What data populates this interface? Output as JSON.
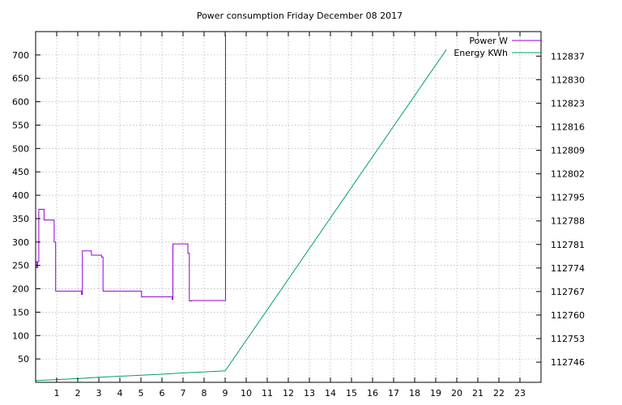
{
  "chart_data": {
    "type": "line",
    "title": "Power consumption Friday December 08 2017",
    "xlabel": "",
    "ylabel": "",
    "y2label": "",
    "xlim": [
      0,
      24
    ],
    "ylim": [
      0,
      750
    ],
    "y2lim": [
      112740,
      112844.3
    ],
    "grid": true,
    "legend_position": "top-right",
    "x_ticks": [
      1,
      2,
      3,
      4,
      5,
      6,
      7,
      8,
      9,
      10,
      11,
      12,
      13,
      14,
      15,
      16,
      17,
      18,
      19,
      20,
      21,
      22,
      23
    ],
    "y_ticks": [
      50,
      100,
      150,
      200,
      250,
      300,
      350,
      400,
      450,
      500,
      550,
      600,
      650,
      700
    ],
    "y2_ticks": [
      112746,
      112753,
      112760,
      112767,
      112774,
      112781,
      112788,
      112795,
      112802,
      112809,
      112816,
      112823,
      112830,
      112837
    ],
    "series": [
      {
        "name": "Power W",
        "axis": "left",
        "color": "#9400d3",
        "step": true,
        "points": [
          [
            0.0,
            258
          ],
          [
            0.05,
            245
          ],
          [
            0.1,
            258
          ],
          [
            0.15,
            370
          ],
          [
            0.35,
            370
          ],
          [
            0.4,
            347
          ],
          [
            0.85,
            347
          ],
          [
            0.88,
            300
          ],
          [
            0.95,
            195
          ],
          [
            2.15,
            195
          ],
          [
            2.18,
            188
          ],
          [
            2.22,
            281
          ],
          [
            2.6,
            281
          ],
          [
            2.65,
            272
          ],
          [
            3.1,
            272
          ],
          [
            3.13,
            268
          ],
          [
            3.2,
            195
          ],
          [
            5.0,
            195
          ],
          [
            5.03,
            183
          ],
          [
            6.45,
            183
          ],
          [
            6.48,
            177
          ],
          [
            6.52,
            296
          ],
          [
            7.2,
            296
          ],
          [
            7.23,
            276
          ],
          [
            7.3,
            174
          ],
          [
            7.35,
            174
          ],
          [
            7.4,
            175
          ],
          [
            9.0,
            175
          ],
          [
            9.02,
            742
          ],
          [
            9.03,
            742
          ]
        ]
      },
      {
        "name": "Energy KWh",
        "axis": "right",
        "color": "#009e73",
        "step": false,
        "points": [
          [
            0.0,
            112740.5
          ],
          [
            1.0,
            112740.8
          ],
          [
            2.0,
            112741.1
          ],
          [
            3.0,
            112741.5
          ],
          [
            4.0,
            112741.8
          ],
          [
            5.0,
            112742.1
          ],
          [
            6.0,
            112742.4
          ],
          [
            7.0,
            112742.8
          ],
          [
            8.0,
            112743.1
          ],
          [
            9.0,
            112743.4
          ],
          [
            19.5,
            112838.9
          ]
        ]
      }
    ]
  }
}
